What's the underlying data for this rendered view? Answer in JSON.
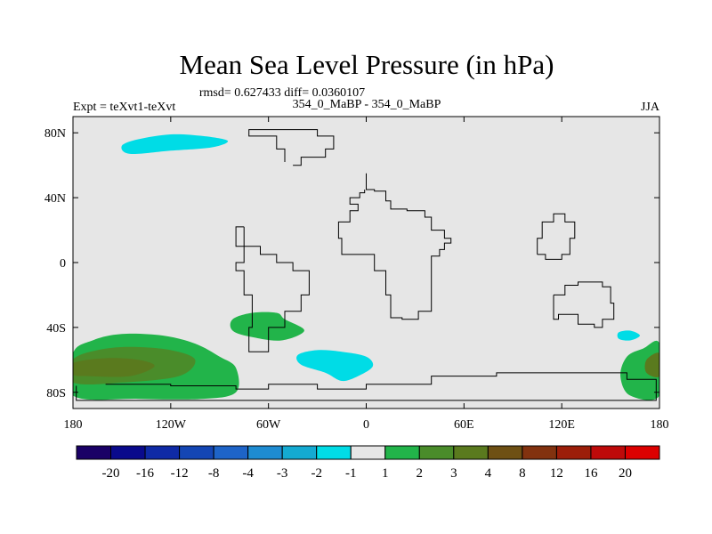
{
  "chart_data": {
    "type": "heatmap",
    "title": "Mean Sea Level Pressure (in hPa)",
    "stats": "rmsd= 0.627433 diff= 0.0360107",
    "left_label": "Expt = teXvt1-teXvt",
    "center_label": "354_0_MaBP - 354_0_MaBP",
    "right_label": "JJA",
    "x_range": [
      -180,
      180
    ],
    "y_range": [
      -90,
      90
    ],
    "x_ticks": [
      {
        "value": -180,
        "label": "180"
      },
      {
        "value": -120,
        "label": "120W"
      },
      {
        "value": -60,
        "label": "60W"
      },
      {
        "value": 0,
        "label": "0"
      },
      {
        "value": 60,
        "label": "60E"
      },
      {
        "value": 120,
        "label": "120E"
      },
      {
        "value": 180,
        "label": "180"
      }
    ],
    "y_ticks": [
      {
        "value": 80,
        "label": "80N"
      },
      {
        "value": 40,
        "label": "40N"
      },
      {
        "value": 0,
        "label": "0"
      },
      {
        "value": -40,
        "label": "40S"
      },
      {
        "value": -80,
        "label": "80S"
      }
    ],
    "background_color": "#e6e6e6",
    "levels": [
      "-20",
      "-16",
      "-12",
      "-8",
      "-4",
      "-3",
      "-2",
      "-1",
      "1",
      "2",
      "3",
      "4",
      "8",
      "12",
      "16",
      "20"
    ],
    "colors": [
      "#1a0066",
      "#0a0a8c",
      "#0f2aa6",
      "#1446b4",
      "#1e64c8",
      "#1e8cd2",
      "#14aad2",
      "#00dce6",
      "#e6e6e6",
      "#22b44a",
      "#4a8c2a",
      "#5a7a1e",
      "#6e5014",
      "#82320f",
      "#9c1e0a",
      "#be0a0a",
      "#dc0000"
    ],
    "anomalies": [
      {
        "name": "arctic-low",
        "level": "-2 to -1",
        "color": "#00dce6",
        "points": [
          [
            -150,
            72
          ],
          [
            -140,
            76
          ],
          [
            -120,
            79
          ],
          [
            -100,
            78
          ],
          [
            -85,
            75
          ],
          [
            -95,
            71
          ],
          [
            -120,
            69
          ],
          [
            -145,
            67
          ]
        ]
      },
      {
        "name": "south-atlantic-low",
        "level": "-2 to -1",
        "color": "#00dce6",
        "points": [
          [
            -42,
            -57
          ],
          [
            -30,
            -54
          ],
          [
            -15,
            -55
          ],
          [
            0,
            -58
          ],
          [
            4,
            -64
          ],
          [
            -5,
            -70
          ],
          [
            -15,
            -73
          ],
          [
            -25,
            -68
          ],
          [
            -40,
            -63
          ]
        ]
      },
      {
        "name": "tasman-low",
        "level": "-2 to -1",
        "color": "#00dce6",
        "points": [
          [
            155,
            -43
          ],
          [
            162,
            -42
          ],
          [
            168,
            -45
          ],
          [
            162,
            -48
          ],
          [
            155,
            -47
          ]
        ]
      },
      {
        "name": "south-pacific-high",
        "level": "1 to 2",
        "color": "#22b44a",
        "points": [
          [
            -180,
            -56
          ],
          [
            -168,
            -48
          ],
          [
            -150,
            -44
          ],
          [
            -125,
            -45
          ],
          [
            -105,
            -50
          ],
          [
            -90,
            -58
          ],
          [
            -80,
            -65
          ],
          [
            -80,
            -80
          ],
          [
            -100,
            -84
          ],
          [
            -140,
            -84
          ],
          [
            -180,
            -82
          ]
        ]
      },
      {
        "name": "south-pacific-high-core",
        "level": "2 to 3",
        "color": "#4a8c2a",
        "points": [
          [
            -180,
            -60
          ],
          [
            -165,
            -54
          ],
          [
            -145,
            -52
          ],
          [
            -120,
            -54
          ],
          [
            -105,
            -60
          ],
          [
            -115,
            -70
          ],
          [
            -150,
            -74
          ],
          [
            -180,
            -74
          ]
        ]
      },
      {
        "name": "south-pacific-high-center",
        "level": "3 to 4",
        "color": "#5a7a1e",
        "points": [
          [
            -180,
            -62
          ],
          [
            -160,
            -59
          ],
          [
            -140,
            -60
          ],
          [
            -130,
            -64
          ],
          [
            -145,
            -70
          ],
          [
            -170,
            -70
          ],
          [
            -180,
            -69
          ]
        ]
      },
      {
        "name": "atlantic-high",
        "level": "1 to 2",
        "color": "#22b44a",
        "points": [
          [
            -82,
            -35
          ],
          [
            -70,
            -31
          ],
          [
            -55,
            -31
          ],
          [
            -50,
            -35
          ],
          [
            -38,
            -42
          ],
          [
            -52,
            -48
          ],
          [
            -70,
            -46
          ],
          [
            -82,
            -42
          ]
        ]
      },
      {
        "name": "indian-high",
        "level": "1 to 2",
        "color": "#22b44a",
        "points": [
          [
            180,
            -50
          ],
          [
            170,
            -53
          ],
          [
            160,
            -58
          ],
          [
            156,
            -70
          ],
          [
            162,
            -82
          ],
          [
            180,
            -82
          ]
        ]
      },
      {
        "name": "indian-high-core",
        "level": "3 to 4",
        "color": "#5a7a1e",
        "points": [
          [
            180,
            -56
          ],
          [
            172,
            -60
          ],
          [
            172,
            -68
          ],
          [
            180,
            -70
          ]
        ]
      }
    ],
    "coastlines": [
      {
        "name": "eurasia-africa",
        "points": [
          [
            0,
            55
          ],
          [
            0,
            45
          ],
          [
            5,
            44
          ],
          [
            12,
            38
          ],
          [
            15,
            33
          ],
          [
            25,
            32
          ],
          [
            36,
            28
          ],
          [
            40,
            20
          ],
          [
            48,
            15
          ],
          [
            52,
            12
          ],
          [
            48,
            8
          ],
          [
            45,
            4
          ],
          [
            40,
            -10
          ],
          [
            40,
            -30
          ],
          [
            32,
            -35
          ],
          [
            22,
            -34
          ],
          [
            15,
            -20
          ],
          [
            12,
            -5
          ],
          [
            5,
            5
          ],
          [
            -2,
            5
          ],
          [
            -15,
            15
          ],
          [
            -17,
            25
          ],
          [
            -10,
            32
          ],
          [
            -5,
            36
          ],
          [
            -10,
            40
          ],
          [
            -4,
            43
          ],
          [
            -1,
            45
          ]
        ]
      },
      {
        "name": "americas",
        "points": [
          [
            -75,
            22
          ],
          [
            -80,
            10
          ],
          [
            -75,
            0
          ],
          [
            -80,
            -5
          ],
          [
            -75,
            -20
          ],
          [
            -70,
            -40
          ],
          [
            -72,
            -55
          ],
          [
            -65,
            -55
          ],
          [
            -60,
            -40
          ],
          [
            -50,
            -30
          ],
          [
            -40,
            -20
          ],
          [
            -35,
            -5
          ],
          [
            -45,
            0
          ],
          [
            -55,
            5
          ],
          [
            -65,
            10
          ],
          [
            -75,
            22
          ]
        ]
      },
      {
        "name": "asia-east",
        "points": [
          [
            105,
            5
          ],
          [
            110,
            2
          ],
          [
            120,
            5
          ],
          [
            125,
            15
          ],
          [
            128,
            25
          ],
          [
            122,
            30
          ],
          [
            115,
            25
          ],
          [
            108,
            15
          ],
          [
            105,
            5
          ]
        ]
      },
      {
        "name": "australia",
        "points": [
          [
            115,
            -20
          ],
          [
            122,
            -14
          ],
          [
            130,
            -12
          ],
          [
            138,
            -12
          ],
          [
            145,
            -15
          ],
          [
            150,
            -25
          ],
          [
            152,
            -35
          ],
          [
            145,
            -40
          ],
          [
            140,
            -38
          ],
          [
            130,
            -32
          ],
          [
            118,
            -35
          ],
          [
            115,
            -30
          ],
          [
            115,
            -20
          ]
        ]
      },
      {
        "name": "antarctica",
        "points": [
          [
            -160,
            -75
          ],
          [
            -120,
            -76
          ],
          [
            -80,
            -78
          ],
          [
            -60,
            -75
          ],
          [
            -30,
            -78
          ],
          [
            0,
            -75
          ],
          [
            40,
            -70
          ],
          [
            80,
            -68
          ],
          [
            120,
            -68
          ],
          [
            160,
            -72
          ],
          [
            178,
            -78
          ],
          [
            178,
            -85
          ],
          [
            -178,
            -85
          ],
          [
            -178,
            -76
          ]
        ]
      },
      {
        "name": "greenland",
        "points": [
          [
            -45,
            60
          ],
          [
            -40,
            65
          ],
          [
            -25,
            70
          ],
          [
            -20,
            78
          ],
          [
            -30,
            82
          ],
          [
            -60,
            82
          ],
          [
            -72,
            78
          ],
          [
            -55,
            70
          ],
          [
            -50,
            62
          ]
        ]
      }
    ]
  }
}
